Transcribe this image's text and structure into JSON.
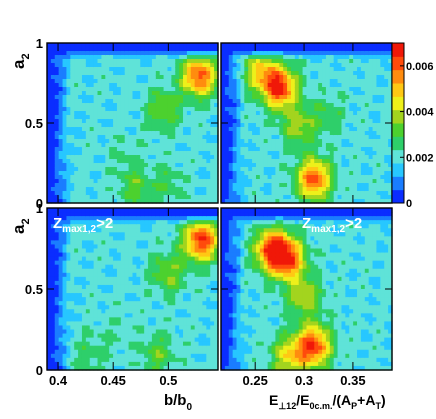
{
  "chart_data": {
    "type": "heatmap",
    "style": "filled-contour",
    "grid": false,
    "colorbar": {
      "range": [
        0,
        0.007
      ],
      "ticks": [
        {
          "v": 0,
          "label": "0"
        },
        {
          "v": 0.002,
          "label": "0.002"
        },
        {
          "v": 0.004,
          "label": "0.004"
        },
        {
          "v": 0.006,
          "label": "0.006"
        }
      ],
      "palette": [
        "#0a2dff",
        "#1a7dff",
        "#27c7ff",
        "#5fe3d8",
        "#2ecf6a",
        "#4cd12e",
        "#a3d41e",
        "#eef01a",
        "#ffc814",
        "#ff8c0f",
        "#ff4b0c",
        "#f01808"
      ]
    },
    "ylabel_main": "a",
    "ylabel_sub": "2",
    "xaxes": [
      {
        "range": [
          0.39,
          0.545
        ],
        "ticks": [
          {
            "v": 0.4,
            "label": "0.4"
          },
          {
            "v": 0.45,
            "label": "0.45"
          },
          {
            "v": 0.5,
            "label": "0.5"
          }
        ],
        "label": "b/b",
        "label_sub": "0"
      },
      {
        "range": [
          0.215,
          0.39
        ],
        "ticks": [
          {
            "v": 0.25,
            "label": "0.25"
          },
          {
            "v": 0.3,
            "label": "0.3"
          },
          {
            "v": 0.35,
            "label": "0.35"
          }
        ],
        "label_parts": [
          "E",
          "⊥12",
          "/E",
          "0c.m.",
          "/(A",
          "P",
          "+A",
          "T",
          ")"
        ]
      }
    ],
    "yaxis": {
      "range": [
        0,
        1
      ],
      "ticks": [
        {
          "v": 0,
          "label": "0"
        },
        {
          "v": 0.5,
          "label": "0.5"
        },
        {
          "v": 1,
          "label": "1"
        }
      ]
    },
    "panels": [
      {
        "row": 0,
        "col": 0,
        "x_var": "b/b0",
        "annotation": "",
        "peaks": [
          {
            "x": 0.528,
            "y": 0.79,
            "level": 0.0062
          },
          {
            "x": 0.495,
            "y": 0.58,
            "level": 0.0035
          },
          {
            "x": 0.46,
            "y": 0.3,
            "level": 0.0024
          },
          {
            "x": 0.47,
            "y": 0.1,
            "level": 0.0032
          },
          {
            "x": 0.5,
            "y": 0.12,
            "level": 0.0028
          }
        ]
      },
      {
        "row": 0,
        "col": 1,
        "x_var": "E_perp12/E_0cm/(A_P+A_T)",
        "annotation": "",
        "peaks": [
          {
            "x": 0.275,
            "y": 0.72,
            "level": 0.0066
          },
          {
            "x": 0.255,
            "y": 0.82,
            "level": 0.0045
          },
          {
            "x": 0.295,
            "y": 0.48,
            "level": 0.0038
          },
          {
            "x": 0.31,
            "y": 0.15,
            "level": 0.0062
          },
          {
            "x": 0.325,
            "y": 0.55,
            "level": 0.0028
          }
        ]
      },
      {
        "row": 1,
        "col": 0,
        "x_var": "b/b0",
        "annotation": "Z_max1,2>2",
        "peaks": [
          {
            "x": 0.53,
            "y": 0.8,
            "level": 0.0066
          },
          {
            "x": 0.5,
            "y": 0.6,
            "level": 0.0036
          },
          {
            "x": 0.455,
            "y": 0.25,
            "level": 0.0023
          },
          {
            "x": 0.43,
            "y": 0.1,
            "level": 0.0028
          },
          {
            "x": 0.49,
            "y": 0.1,
            "level": 0.0032
          }
        ]
      },
      {
        "row": 1,
        "col": 1,
        "x_var": "E_perp12/E_0cm/(A_P+A_T)",
        "annotation": "Z_max1,2>2",
        "peaks": [
          {
            "x": 0.268,
            "y": 0.74,
            "level": 0.0068
          },
          {
            "x": 0.285,
            "y": 0.68,
            "level": 0.0055
          },
          {
            "x": 0.3,
            "y": 0.45,
            "level": 0.004
          },
          {
            "x": 0.31,
            "y": 0.15,
            "level": 0.0064
          },
          {
            "x": 0.285,
            "y": 0.08,
            "level": 0.0045
          }
        ]
      }
    ]
  }
}
